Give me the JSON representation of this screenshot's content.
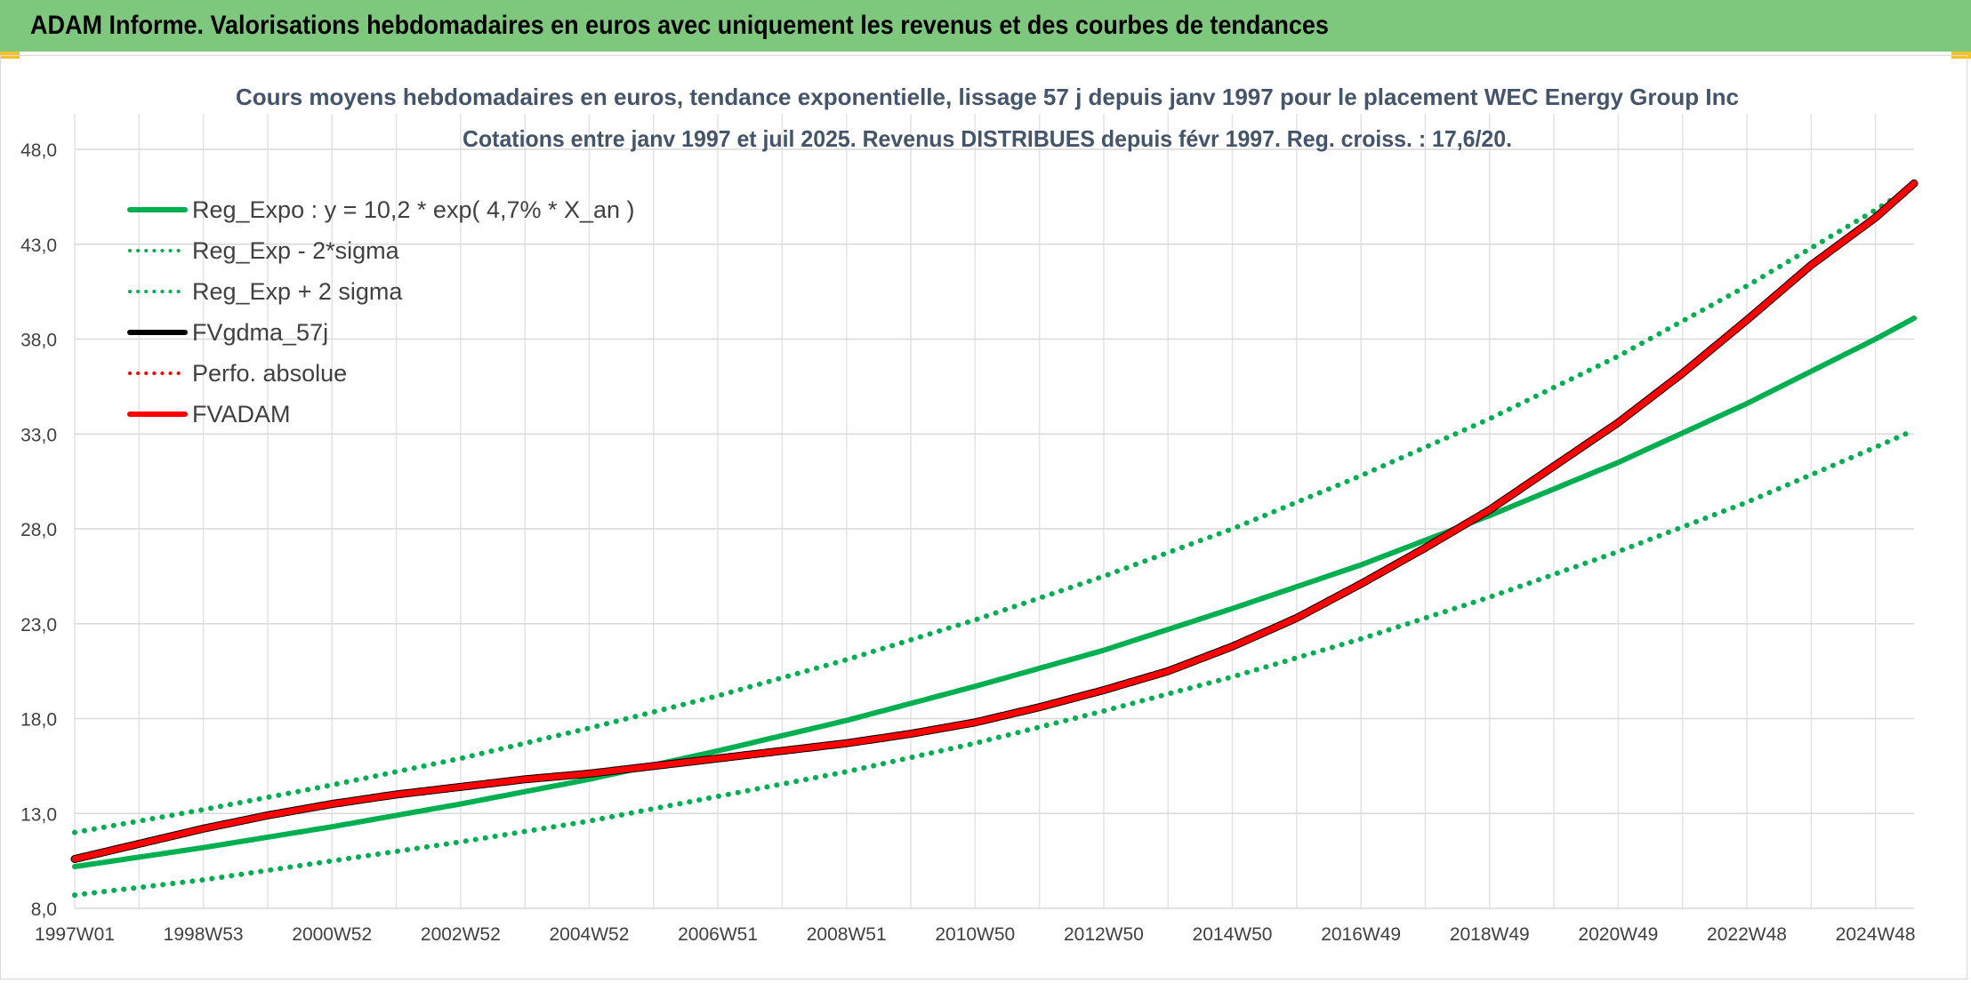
{
  "banner": {
    "title": "ADAM Informe. Valorisations hebdomadaires en euros avec uniquement les revenus et des courbes de tendances"
  },
  "chart_data": {
    "type": "line",
    "title": "Cours moyens hebdomadaires en euros, tendance exponentielle, lissage 57 j depuis janv 1997 pour le placement WEC Energy Group Inc",
    "subtitle": "Cotations entre janv 1997 et juil 2025. Revenus DISTRIBUES depuis févr 1997. Reg. croiss. : 17,6/20.",
    "xlabel": "",
    "ylabel": "",
    "ylim": [
      8.0,
      48.0
    ],
    "y_ticks": [
      "8,0",
      "13,0",
      "18,0",
      "23,0",
      "28,0",
      "33,0",
      "38,0",
      "43,0",
      "48,0"
    ],
    "y_tick_values": [
      8,
      13,
      18,
      23,
      28,
      33,
      38,
      43,
      48
    ],
    "x_ticks": [
      "1997W01",
      "1998W53",
      "2000W52",
      "2002W52",
      "2004W52",
      "2006W51",
      "2008W51",
      "2010W50",
      "2012W50",
      "2014W50",
      "2016W49",
      "2018W49",
      "2020W49",
      "2022W48",
      "2024W48"
    ],
    "x_tick_years": [
      1997.0,
      1999.0,
      2001.0,
      2003.0,
      2005.0,
      2007.0,
      2009.0,
      2011.0,
      2013.0,
      2015.0,
      2017.0,
      2019.0,
      2021.0,
      2023.0,
      2025.0
    ],
    "xlim": [
      1997.0,
      2025.6
    ],
    "grid": true,
    "legend_position": "top-left",
    "series": [
      {
        "name": "Reg_Expo : y = 10,2 * exp( 4,7% *  X_an )",
        "color": "#00b050",
        "style": "solid",
        "x": [
          1997.0,
          1999.0,
          2001.0,
          2003.0,
          2005.0,
          2007.0,
          2009.0,
          2011.0,
          2013.0,
          2015.0,
          2017.0,
          2019.0,
          2021.0,
          2023.0,
          2025.0,
          2025.6
        ],
        "y": [
          10.2,
          11.2,
          12.3,
          13.5,
          14.8,
          16.3,
          17.9,
          19.7,
          21.6,
          23.8,
          26.1,
          28.7,
          31.5,
          34.6,
          38.0,
          39.1
        ]
      },
      {
        "name": "Reg_Exp - 2*sigma",
        "color": "#00b050",
        "style": "dotted",
        "x": [
          1997.0,
          1999.0,
          2001.0,
          2003.0,
          2005.0,
          2007.0,
          2009.0,
          2011.0,
          2013.0,
          2015.0,
          2017.0,
          2019.0,
          2021.0,
          2023.0,
          2025.0,
          2025.6
        ],
        "y": [
          8.7,
          9.5,
          10.5,
          11.5,
          12.6,
          13.9,
          15.2,
          16.7,
          18.4,
          20.2,
          22.2,
          24.4,
          26.8,
          29.4,
          32.3,
          33.2
        ]
      },
      {
        "name": "Reg_Exp + 2 sigma",
        "color": "#00b050",
        "style": "dotted",
        "x": [
          1997.0,
          1999.0,
          2001.0,
          2003.0,
          2005.0,
          2007.0,
          2009.0,
          2011.0,
          2013.0,
          2015.0,
          2017.0,
          2019.0,
          2021.0,
          2023.0,
          2025.0,
          2025.6
        ],
        "y": [
          12.0,
          13.2,
          14.5,
          15.9,
          17.5,
          19.2,
          21.1,
          23.2,
          25.5,
          28.0,
          30.8,
          33.8,
          37.1,
          40.8,
          44.8,
          46.1
        ]
      },
      {
        "name": "FVgdma_57j",
        "color": "#000000",
        "style": "solid",
        "x": [
          1997.0,
          1998.0,
          1999.0,
          2000.0,
          2001.0,
          2002.0,
          2003.0,
          2004.0,
          2005.0,
          2006.0,
          2007.0,
          2008.0,
          2009.0,
          2010.0,
          2011.0,
          2012.0,
          2013.0,
          2014.0,
          2015.0,
          2016.0,
          2017.0,
          2018.0,
          2019.0,
          2020.0,
          2021.0,
          2022.0,
          2023.0,
          2024.0,
          2025.0,
          2025.6
        ],
        "y": [
          10.6,
          11.4,
          12.2,
          12.9,
          13.5,
          14.0,
          14.4,
          14.8,
          15.1,
          15.5,
          15.9,
          16.3,
          16.7,
          17.2,
          17.8,
          18.6,
          19.5,
          20.5,
          21.8,
          23.3,
          25.1,
          27.0,
          29.0,
          31.3,
          33.6,
          36.2,
          39.0,
          41.9,
          44.4,
          46.2
        ]
      },
      {
        "name": "Perfo. absolue",
        "color": "#ff0000",
        "style": "dotted",
        "x": [],
        "y": []
      },
      {
        "name": "FVADAM",
        "color": "#ff0000",
        "style": "solid",
        "x": [
          1997.0,
          1998.0,
          1999.0,
          2000.0,
          2001.0,
          2002.0,
          2003.0,
          2004.0,
          2005.0,
          2006.0,
          2007.0,
          2008.0,
          2009.0,
          2010.0,
          2011.0,
          2012.0,
          2013.0,
          2014.0,
          2015.0,
          2016.0,
          2017.0,
          2018.0,
          2019.0,
          2020.0,
          2021.0,
          2022.0,
          2023.0,
          2024.0,
          2025.0,
          2025.6
        ],
        "y": [
          10.6,
          11.4,
          12.2,
          12.9,
          13.5,
          14.0,
          14.4,
          14.8,
          15.1,
          15.5,
          15.9,
          16.3,
          16.7,
          17.2,
          17.8,
          18.6,
          19.5,
          20.5,
          21.8,
          23.3,
          25.1,
          27.0,
          29.0,
          31.3,
          33.6,
          36.2,
          39.0,
          41.9,
          44.4,
          46.2
        ]
      }
    ]
  }
}
